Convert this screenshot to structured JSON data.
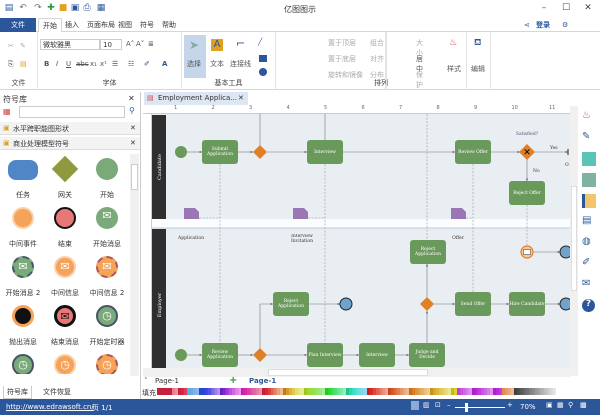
{
  "app": {
    "title": "亿图图示"
  },
  "menu": {
    "file": "文件",
    "tabs": [
      "开始",
      "插入",
      "页面布局",
      "视图",
      "符号",
      "帮助"
    ],
    "login": "登录"
  },
  "ribbon": {
    "font_name": "微软雅黑",
    "font_size": "10",
    "groups": [
      "文件",
      "字体",
      "基本工具",
      "排列"
    ],
    "tools": {
      "select": "选择",
      "text": "文本",
      "connector": "连接线"
    },
    "arrange": [
      "置于顶层",
      "置于底层",
      "旋转和镜像",
      "组合",
      "对齐",
      "分布",
      "大小",
      "居中",
      "保护"
    ],
    "style": "样式",
    "edit": "编辑"
  },
  "library": {
    "title": "符号库",
    "search_placeholder": "",
    "categories": [
      "水平跨职能图形状",
      "商业处理模型符号"
    ],
    "shapes": [
      "任务",
      "网关",
      "开始",
      "中间事件",
      "结束",
      "开始消息",
      "开始消息 2",
      "中间信息",
      "中间信息 2",
      "抛出消息",
      "结束消息",
      "开始定时器",
      "",
      "",
      ""
    ],
    "bottom_tabs": [
      "符号库",
      "文件恢复"
    ]
  },
  "document": {
    "tab": "Employment Applica...",
    "ruler": [
      "1",
      "2",
      "3",
      "4",
      "5",
      "6",
      "7",
      "8",
      "9",
      "10",
      "11"
    ]
  },
  "diagram": {
    "lanes": [
      "Candidate",
      "Employer"
    ],
    "tasks": {
      "submit": "Submit Application",
      "interview_c": "Interview",
      "review_offer": "Review Offer",
      "reject_offer": "Reject Offer",
      "reject_app_top": "Reject Application",
      "reject_app_left": "Reject Application",
      "send_offer": "Send Offer",
      "hire": "Hire Candidate",
      "review_app": "Review Application",
      "plan": "Plan Interview",
      "interview_e": "Interview",
      "judge": "Judge and Decide"
    },
    "docs": [
      "Application",
      "Interview Invitation",
      "Offer"
    ],
    "labels": {
      "satisfied": "Satisfied?",
      "yes": "Yes",
      "no": "No",
      "o": "O"
    }
  },
  "pagebar": {
    "page_select": "Page-1",
    "active_page": "Page-1",
    "fill_label": "填充"
  },
  "status": {
    "url": "http://www.edrawsoft.cn/",
    "page": "页 1/1",
    "zoom": "70%"
  },
  "colors": {
    "accent": "#2b579a",
    "task": "#6a9a5b",
    "gateway": "#e07f25",
    "doc": "#9b76b5",
    "end": "#6fa3cc",
    "lane_bar": "#2f2f2f"
  }
}
